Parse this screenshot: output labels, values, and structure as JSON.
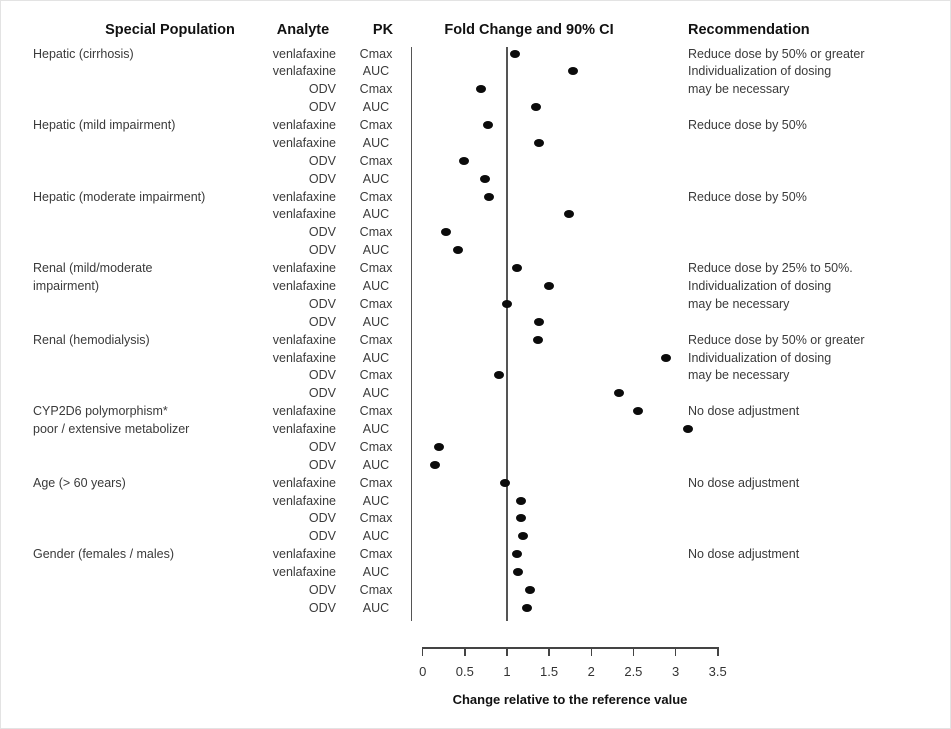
{
  "header": {
    "col_population": "Special Population",
    "col_analyte": "Analyte",
    "col_pk": "PK",
    "col_fold": "Fold Change and 90% CI",
    "col_recommendation": "Recommendation"
  },
  "colors": {
    "dot": "#0b0b0b",
    "line": "#555555",
    "text": "#3a3a3a",
    "header_text": "#111111"
  },
  "chart_data": {
    "type": "scatter",
    "title": "Fold Change and 90% CI",
    "xlabel": "Change relative to the reference value",
    "x_ticks": [
      0,
      0.5,
      1,
      1.5,
      2,
      2.5,
      3,
      3.5
    ],
    "xlim": [
      0,
      3.5
    ],
    "reference_line_x": 1,
    "grid": false,
    "legend": false,
    "groups": [
      {
        "population": [
          "Hepatic (cirrhosis)"
        ],
        "recommendation": [
          "Reduce dose by 50% or greater",
          "Individualization of dosing",
          "may be necessary"
        ],
        "rows": [
          {
            "analyte": "venlafaxine",
            "pk": "Cmax",
            "fold_change": 1.09
          },
          {
            "analyte": "venlafaxine",
            "pk": "AUC",
            "fold_change": 1.78
          },
          {
            "analyte": "ODV",
            "pk": "Cmax",
            "fold_change": 0.69
          },
          {
            "analyte": "ODV",
            "pk": "AUC",
            "fold_change": 1.34
          }
        ]
      },
      {
        "population": [
          "Hepatic (mild impairment)"
        ],
        "recommendation": [
          "Reduce dose by 50%"
        ],
        "rows": [
          {
            "analyte": "venlafaxine",
            "pk": "Cmax",
            "fold_change": 0.78
          },
          {
            "analyte": "venlafaxine",
            "pk": "AUC",
            "fold_change": 1.38
          },
          {
            "analyte": "ODV",
            "pk": "Cmax",
            "fold_change": 0.49
          },
          {
            "analyte": "ODV",
            "pk": "AUC",
            "fold_change": 0.74
          }
        ]
      },
      {
        "population": [
          "Hepatic (moderate impairment)"
        ],
        "recommendation": [
          "Reduce dose by 50%"
        ],
        "rows": [
          {
            "analyte": "venlafaxine",
            "pk": "Cmax",
            "fold_change": 0.79
          },
          {
            "analyte": "venlafaxine",
            "pk": "AUC",
            "fold_change": 1.74
          },
          {
            "analyte": "ODV",
            "pk": "Cmax",
            "fold_change": 0.27
          },
          {
            "analyte": "ODV",
            "pk": "AUC",
            "fold_change": 0.42
          }
        ]
      },
      {
        "population": [
          "Renal (mild/moderate",
          "impairment)"
        ],
        "recommendation": [
          "Reduce dose by 25% to 50%.",
          "Individualization of dosing",
          "may be necessary"
        ],
        "rows": [
          {
            "analyte": "venlafaxine",
            "pk": "Cmax",
            "fold_change": 1.12
          },
          {
            "analyte": "venlafaxine",
            "pk": "AUC",
            "fold_change": 1.5
          },
          {
            "analyte": "ODV",
            "pk": "Cmax",
            "fold_change": 1.0
          },
          {
            "analyte": "ODV",
            "pk": "AUC",
            "fold_change": 1.38
          }
        ]
      },
      {
        "population": [
          "Renal (hemodialysis)"
        ],
        "recommendation": [
          "Reduce dose by 50% or greater",
          "Individualization of dosing",
          "may be necessary"
        ],
        "rows": [
          {
            "analyte": "venlafaxine",
            "pk": "Cmax",
            "fold_change": 1.37
          },
          {
            "analyte": "venlafaxine",
            "pk": "AUC",
            "fold_change": 2.89
          },
          {
            "analyte": "ODV",
            "pk": "Cmax",
            "fold_change": 0.91
          },
          {
            "analyte": "ODV",
            "pk": "AUC",
            "fold_change": 2.33
          }
        ]
      },
      {
        "population": [
          "CYP2D6 polymorphism*",
          "poor / extensive metabolizer"
        ],
        "recommendation": [
          "No dose adjustment"
        ],
        "rows": [
          {
            "analyte": "venlafaxine",
            "pk": "Cmax",
            "fold_change": 2.55
          },
          {
            "analyte": "venlafaxine",
            "pk": "AUC",
            "fold_change": 3.15
          },
          {
            "analyte": "ODV",
            "pk": "Cmax",
            "fold_change": 0.19
          },
          {
            "analyte": "ODV",
            "pk": "AUC",
            "fold_change": 0.14
          }
        ]
      },
      {
        "population": [
          "Age (> 60 years)"
        ],
        "recommendation": [
          "No dose adjustment"
        ],
        "rows": [
          {
            "analyte": "venlafaxine",
            "pk": "Cmax",
            "fold_change": 0.98
          },
          {
            "analyte": "venlafaxine",
            "pk": "AUC",
            "fold_change": 1.17
          },
          {
            "analyte": "ODV",
            "pk": "Cmax",
            "fold_change": 1.17
          },
          {
            "analyte": "ODV",
            "pk": "AUC",
            "fold_change": 1.19
          }
        ]
      },
      {
        "population": [
          "Gender (females / males)"
        ],
        "recommendation": [
          "No dose adjustment"
        ],
        "rows": [
          {
            "analyte": "venlafaxine",
            "pk": "Cmax",
            "fold_change": 1.12
          },
          {
            "analyte": "venlafaxine",
            "pk": "AUC",
            "fold_change": 1.13
          },
          {
            "analyte": "ODV",
            "pk": "Cmax",
            "fold_change": 1.27
          },
          {
            "analyte": "ODV",
            "pk": "AUC",
            "fold_change": 1.24
          }
        ]
      }
    ]
  }
}
